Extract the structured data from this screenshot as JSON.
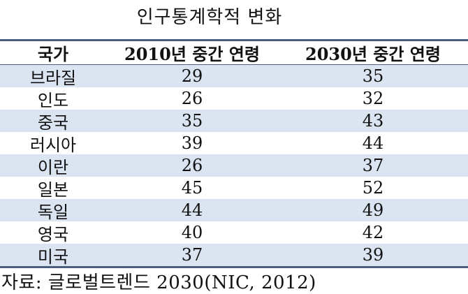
{
  "title": "인구통계학적 변화",
  "table": {
    "headers": [
      "국가",
      "2010년 중간 연령",
      "2030년 중간 연령"
    ],
    "rows": [
      {
        "country": "브라질",
        "age_2010": "29",
        "age_2030": "35"
      },
      {
        "country": "인도",
        "age_2010": "26",
        "age_2030": "32"
      },
      {
        "country": "중국",
        "age_2010": "35",
        "age_2030": "43"
      },
      {
        "country": "러시아",
        "age_2010": "39",
        "age_2030": "44"
      },
      {
        "country": "이란",
        "age_2010": "26",
        "age_2030": "37"
      },
      {
        "country": "일본",
        "age_2010": "45",
        "age_2030": "52"
      },
      {
        "country": "독일",
        "age_2010": "44",
        "age_2030": "49"
      },
      {
        "country": "영국",
        "age_2010": "40",
        "age_2030": "42"
      },
      {
        "country": "미국",
        "age_2010": "37",
        "age_2030": "39"
      }
    ]
  },
  "source": "자료: 글로벌트렌드 2030(NIC, 2012)",
  "colors": {
    "rule": "#4a5e7d",
    "shade": "#dbe5f2"
  }
}
